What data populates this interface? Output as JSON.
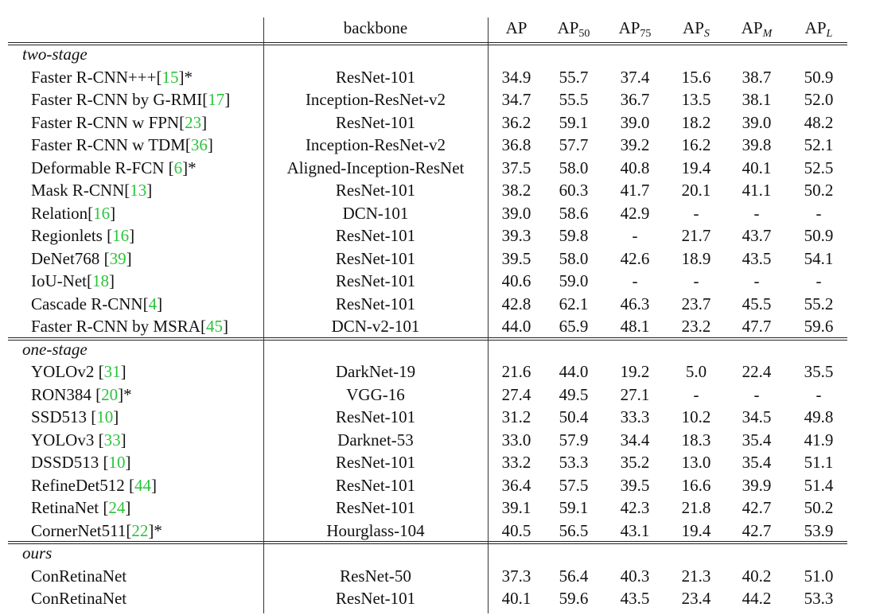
{
  "header": {
    "backbone": "backbone",
    "ap": "AP",
    "ap50_base": "AP",
    "ap50_sub": "50",
    "ap75_base": "AP",
    "ap75_sub": "75",
    "aps_base": "AP",
    "aps_sub": "S",
    "apm_base": "AP",
    "apm_sub": "M",
    "apl_base": "AP",
    "apl_sub": "L"
  },
  "groups": [
    {
      "label": "two-stage",
      "rows": [
        {
          "name": "Faster R-CNN+++",
          "ref": "15",
          "suffix": "*",
          "backbone": "ResNet-101",
          "vals": [
            "34.9",
            "55.7",
            "37.4",
            "15.6",
            "38.7",
            "50.9"
          ]
        },
        {
          "name": "Faster R-CNN by G-RMI",
          "ref": "17",
          "suffix": "",
          "backbone": "Inception-ResNet-v2",
          "vals": [
            "34.7",
            "55.5",
            "36.7",
            "13.5",
            "38.1",
            "52.0"
          ]
        },
        {
          "name": "Faster R-CNN w FPN",
          "ref": "23",
          "suffix": "",
          "backbone": "ResNet-101",
          "vals": [
            "36.2",
            "59.1",
            "39.0",
            "18.2",
            "39.0",
            "48.2"
          ]
        },
        {
          "name": "Faster R-CNN w TDM",
          "ref": "36",
          "suffix": "",
          "backbone": "Inception-ResNet-v2",
          "vals": [
            "36.8",
            "57.7",
            "39.2",
            "16.2",
            "39.8",
            "52.1"
          ]
        },
        {
          "name": "Deformable R-FCN ",
          "ref": "6",
          "suffix": "*",
          "backbone": "Aligned-Inception-ResNet",
          "vals": [
            "37.5",
            "58.0",
            "40.8",
            "19.4",
            "40.1",
            "52.5"
          ]
        },
        {
          "name": "Mask R-CNN",
          "ref": "13",
          "suffix": "",
          "backbone": "ResNet-101",
          "vals": [
            "38.2",
            "60.3",
            "41.7",
            "20.1",
            "41.1",
            "50.2"
          ]
        },
        {
          "name": "Relation",
          "ref": "16",
          "suffix": "",
          "backbone": "DCN-101",
          "vals": [
            "39.0",
            "58.6",
            "42.9",
            "-",
            "-",
            "-"
          ]
        },
        {
          "name": "Regionlets ",
          "ref": "16",
          "suffix": "",
          "backbone": "ResNet-101",
          "vals": [
            "39.3",
            "59.8",
            "-",
            "21.7",
            "43.7",
            "50.9"
          ]
        },
        {
          "name": "DeNet768 ",
          "ref": "39",
          "suffix": "",
          "backbone": "ResNet-101",
          "vals": [
            "39.5",
            "58.0",
            "42.6",
            "18.9",
            "43.5",
            "54.1"
          ]
        },
        {
          "name": "IoU-Net",
          "ref": "18",
          "suffix": "",
          "backbone": "ResNet-101",
          "vals": [
            "40.6",
            "59.0",
            "-",
            "-",
            "-",
            "-"
          ]
        },
        {
          "name": "Cascade R-CNN",
          "ref": "4",
          "suffix": "",
          "backbone": "ResNet-101",
          "vals": [
            "42.8",
            "62.1",
            "46.3",
            "23.7",
            "45.5",
            "55.2"
          ]
        },
        {
          "name": "Faster R-CNN by MSRA",
          "ref": "45",
          "suffix": "",
          "backbone": "DCN-v2-101",
          "vals": [
            "44.0",
            "65.9",
            "48.1",
            "23.2",
            "47.7",
            "59.6"
          ]
        }
      ]
    },
    {
      "label": "one-stage",
      "rows": [
        {
          "name": "YOLOv2 ",
          "ref": "31",
          "suffix": "",
          "backbone": "DarkNet-19",
          "vals": [
            "21.6",
            "44.0",
            "19.2",
            "5.0",
            "22.4",
            "35.5"
          ]
        },
        {
          "name": "RON384 ",
          "ref": "20",
          "suffix": "*",
          "backbone": "VGG-16",
          "vals": [
            "27.4",
            "49.5",
            "27.1",
            "-",
            "-",
            "-"
          ]
        },
        {
          "name": "SSD513 ",
          "ref": "10",
          "suffix": "",
          "backbone": "ResNet-101",
          "vals": [
            "31.2",
            "50.4",
            "33.3",
            "10.2",
            "34.5",
            "49.8"
          ]
        },
        {
          "name": "YOLOv3 ",
          "ref": "33",
          "suffix": "",
          "backbone": "Darknet-53",
          "vals": [
            "33.0",
            "57.9",
            "34.4",
            "18.3",
            "35.4",
            "41.9"
          ]
        },
        {
          "name": "DSSD513 ",
          "ref": "10",
          "suffix": "",
          "backbone": "ResNet-101",
          "vals": [
            "33.2",
            "53.3",
            "35.2",
            "13.0",
            "35.4",
            "51.1"
          ]
        },
        {
          "name": "RefineDet512 ",
          "ref": "44",
          "suffix": "",
          "backbone": "ResNet-101",
          "vals": [
            "36.4",
            "57.5",
            "39.5",
            "16.6",
            "39.9",
            "51.4"
          ]
        },
        {
          "name": "RetinaNet ",
          "ref": "24",
          "suffix": "",
          "backbone": "ResNet-101",
          "vals": [
            "39.1",
            "59.1",
            "42.3",
            "21.8",
            "42.7",
            "50.2"
          ]
        },
        {
          "name": "CornerNet511",
          "ref": "22",
          "suffix": "*",
          "backbone": "Hourglass-104",
          "vals": [
            "40.5",
            "56.5",
            "43.1",
            "19.4",
            "42.7",
            "53.9"
          ]
        }
      ]
    },
    {
      "label": "ours",
      "rows": [
        {
          "name": "ConRetinaNet",
          "ref": "",
          "suffix": "",
          "backbone": "ResNet-50",
          "vals": [
            "37.3",
            "56.4",
            "40.3",
            "21.3",
            "40.2",
            "51.0"
          ]
        },
        {
          "name": "ConRetinaNet",
          "ref": "",
          "suffix": "",
          "backbone": "ResNet-101",
          "vals": [
            "40.1",
            "59.6",
            "43.5",
            "23.4",
            "44.2",
            "53.3"
          ]
        }
      ]
    }
  ]
}
